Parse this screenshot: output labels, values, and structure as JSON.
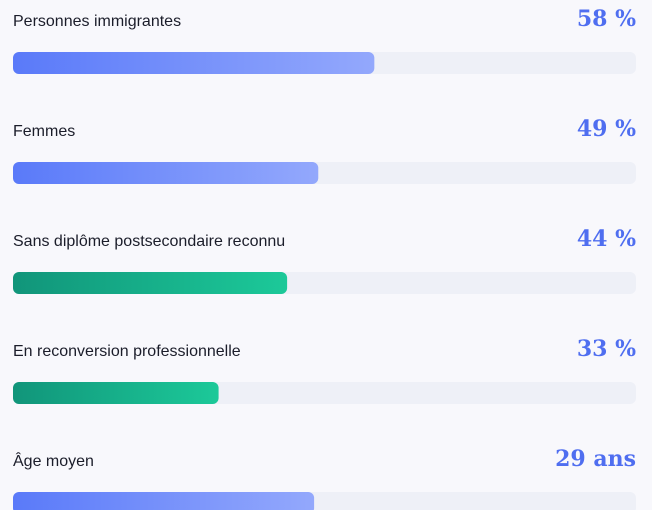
{
  "items": [
    {
      "label": "Personnes immigrantes",
      "value": 58,
      "value_label": "58 %",
      "range": [
        0,
        100
      ],
      "colors": [
        "#5a7af9",
        "#93a8fc"
      ]
    },
    {
      "label": "Femmes",
      "value": 49,
      "value_label": "49 %",
      "range": [
        0,
        100
      ],
      "colors": [
        "#5a7af9",
        "#93a8fc"
      ]
    },
    {
      "label": "Sans diplôme postsecondaire reconnu",
      "value": 44,
      "value_label": "44 %",
      "range": [
        0,
        100
      ],
      "colors": [
        "#11957a",
        "#1cc999"
      ]
    },
    {
      "label": "En reconversion professionnelle",
      "value": 33,
      "value_label": "33 %",
      "range": [
        0,
        100
      ],
      "colors": [
        "#11957a",
        "#1cc999"
      ]
    },
    {
      "label": "Âge moyen",
      "value": 29,
      "value_label": "29 ans",
      "range": [
        0,
        60
      ],
      "colors": [
        "#5a7af9",
        "#93a8fc"
      ]
    }
  ]
}
